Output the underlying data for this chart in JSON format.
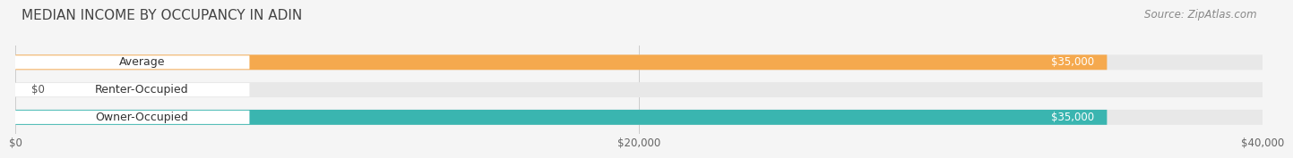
{
  "title": "MEDIAN INCOME BY OCCUPANCY IN ADIN",
  "source": "Source: ZipAtlas.com",
  "categories": [
    "Owner-Occupied",
    "Renter-Occupied",
    "Average"
  ],
  "values": [
    35000,
    0,
    35000
  ],
  "bar_colors": [
    "#3ab5b0",
    "#c9a8d4",
    "#f5a94e"
  ],
  "label_colors": [
    "#ffffff",
    "#555555",
    "#ffffff"
  ],
  "value_labels": [
    "$35,000",
    "$0",
    "$35,000"
  ],
  "xlim": [
    0,
    40000
  ],
  "xticks": [
    0,
    20000,
    40000
  ],
  "xtick_labels": [
    "$0",
    "$20,000",
    "$40,000"
  ],
  "background_color": "#f0f0f0",
  "bar_background": "#e8e8e8",
  "bar_height": 0.55,
  "title_fontsize": 11,
  "source_fontsize": 8.5,
  "label_fontsize": 9,
  "value_fontsize": 8.5,
  "tick_fontsize": 8.5
}
